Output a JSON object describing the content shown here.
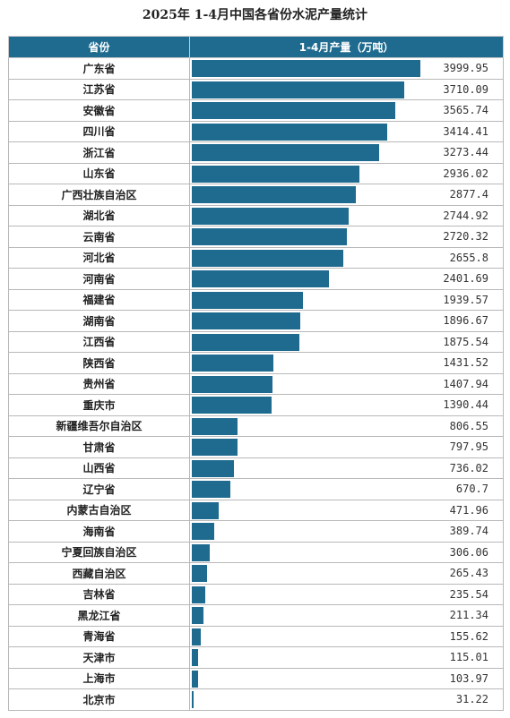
{
  "title": "2025年 1-4月中国各省份水泥产量统计",
  "colors": {
    "header_bg": "#1f6b8f",
    "bar": "#1f6b8f",
    "border": "#b8b8b8"
  },
  "headers": {
    "province": "省份",
    "value": "1-4月产量（万吨）"
  },
  "chart_data": {
    "type": "bar",
    "orientation": "horizontal",
    "title": "2025年 1-4月中国各省份水泥产量统计",
    "xlabel": "",
    "ylabel": "",
    "categories": [
      "广东省",
      "江苏省",
      "安徽省",
      "四川省",
      "浙江省",
      "山东省",
      "广西壮族自治区",
      "湖北省",
      "云南省",
      "河北省",
      "河南省",
      "福建省",
      "湖南省",
      "江西省",
      "陕西省",
      "贵州省",
      "重庆市",
      "新疆维吾尔自治区",
      "甘肃省",
      "山西省",
      "辽宁省",
      "内蒙古自治区",
      "海南省",
      "宁夏回族自治区",
      "西藏自治区",
      "吉林省",
      "黑龙江省",
      "青海省",
      "天津市",
      "上海市",
      "北京市"
    ],
    "values": [
      3999.95,
      3710.09,
      3565.74,
      3414.41,
      3273.44,
      2936.02,
      2877.4,
      2744.92,
      2720.32,
      2655.8,
      2401.69,
      1939.57,
      1896.67,
      1875.54,
      1431.52,
      1407.94,
      1390.44,
      806.55,
      797.95,
      736.02,
      670.7,
      471.96,
      389.74,
      306.06,
      265.43,
      235.54,
      211.34,
      155.62,
      115.01,
      103.97,
      31.22
    ],
    "labels": [
      "3999.95",
      "3710.09",
      "3565.74",
      "3414.41",
      "3273.44",
      "2936.02",
      "2877.4",
      "2744.92",
      "2720.32",
      "2655.8",
      "2401.69",
      "1939.57",
      "1896.67",
      "1875.54",
      "1431.52",
      "1407.94",
      "1390.44",
      "806.55",
      "797.95",
      "736.02",
      "670.7",
      "471.96",
      "389.74",
      "306.06",
      "265.43",
      "235.54",
      "211.34",
      "155.62",
      "115.01",
      "103.97",
      "31.22"
    ],
    "xlim": [
      0,
      3999.95
    ]
  }
}
